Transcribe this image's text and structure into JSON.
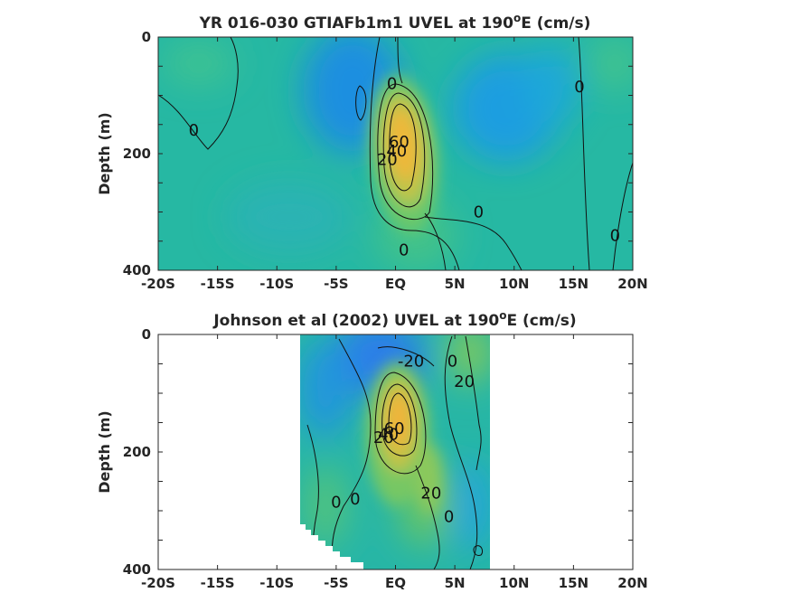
{
  "chart_data": [
    {
      "type": "heatmap",
      "title_main": "YR 016-030 GTIAFb1m1 UVEL at 190",
      "title_sup": "o",
      "title_tail": "E (cm/s)",
      "ylabel": "Depth (m)",
      "xlabel": "",
      "x_ticks": [
        "-20S",
        "-15S",
        "-10S",
        "-5S",
        "EQ",
        "5N",
        "10N",
        "15N",
        "20N"
      ],
      "x_values": [
        -20,
        -15,
        -10,
        -5,
        0,
        5,
        10,
        15,
        20
      ],
      "y_ticks": [
        "0",
        "200",
        "400"
      ],
      "y_values": [
        0,
        200,
        400
      ],
      "xlim": [
        -20,
        20
      ],
      "ylim": [
        0,
        400
      ],
      "y_reversed": true,
      "data_extent_x": [
        -20,
        20
      ],
      "core": {
        "lat": 0.5,
        "depth": 170,
        "max_speed": 80
      },
      "contour_labels": [
        {
          "text": "0",
          "lat": -17,
          "depth": 160
        },
        {
          "text": "0",
          "lat": -0.3,
          "depth": 80
        },
        {
          "text": "20",
          "lat": -0.7,
          "depth": 210
        },
        {
          "text": "40",
          "lat": 0.1,
          "depth": 195
        },
        {
          "text": "60",
          "lat": 0.3,
          "depth": 180
        },
        {
          "text": "0",
          "lat": 7,
          "depth": 300
        },
        {
          "text": "0",
          "lat": 0.7,
          "depth": 365
        },
        {
          "text": "0",
          "lat": 15.5,
          "depth": 85
        },
        {
          "text": "0",
          "lat": 18.5,
          "depth": 340
        }
      ]
    },
    {
      "type": "heatmap",
      "title_main": "Johnson et al (2002) UVEL at 190",
      "title_sup": "o",
      "title_tail": "E (cm/s)",
      "ylabel": "Depth (m)",
      "xlabel": "",
      "x_ticks": [
        "-20S",
        "-15S",
        "-10S",
        "-5S",
        "EQ",
        "5N",
        "10N",
        "15N",
        "20N"
      ],
      "x_values": [
        -20,
        -15,
        -10,
        -5,
        0,
        5,
        10,
        15,
        20
      ],
      "y_ticks": [
        "0",
        "200",
        "400"
      ],
      "y_values": [
        0,
        200,
        400
      ],
      "xlim": [
        -20,
        20
      ],
      "ylim": [
        0,
        400
      ],
      "y_reversed": true,
      "data_extent_x": [
        -8,
        8
      ],
      "core": {
        "lat": 0.3,
        "depth": 150,
        "max_speed": 80
      },
      "contour_labels": [
        {
          "text": "-20",
          "lat": 1.3,
          "depth": 45
        },
        {
          "text": "0",
          "lat": 4.8,
          "depth": 45
        },
        {
          "text": "20",
          "lat": 5.8,
          "depth": 80
        },
        {
          "text": "20",
          "lat": -1.0,
          "depth": 175
        },
        {
          "text": "40",
          "lat": -0.6,
          "depth": 170
        },
        {
          "text": "60",
          "lat": -0.1,
          "depth": 160
        },
        {
          "text": "20",
          "lat": 3.0,
          "depth": 270
        },
        {
          "text": "0",
          "lat": -5.0,
          "depth": 285
        },
        {
          "text": "0",
          "lat": -3.4,
          "depth": 280
        },
        {
          "text": "0",
          "lat": 4.5,
          "depth": 310
        }
      ]
    }
  ]
}
